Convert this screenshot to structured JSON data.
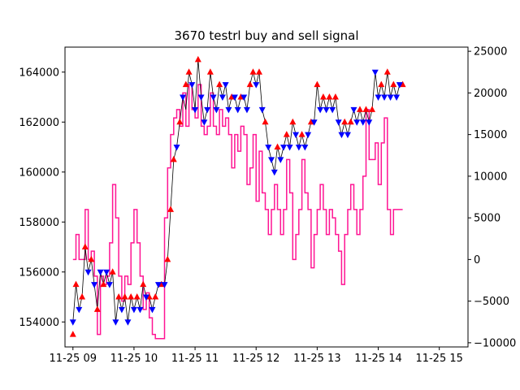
{
  "chart_data": {
    "type": "line",
    "title": "3670 testrl buy and sell signal",
    "xlabel": "",
    "ylabel": "",
    "x_ticks": [
      "11-25 09",
      "11-25 10",
      "11-25 11",
      "11-25 12",
      "11-25 13",
      "11-25 14",
      "11-25 15"
    ],
    "x_tick_hours": [
      9,
      10,
      11,
      12,
      13,
      14,
      15
    ],
    "xlim_hours": [
      8.87,
      15.47
    ],
    "y_left": {
      "lim": [
        153000,
        165000
      ],
      "ticks": [
        154000,
        156000,
        158000,
        160000,
        162000,
        164000
      ]
    },
    "y_right": {
      "lim": [
        -10500,
        25500
      ],
      "ticks": [
        -10000,
        -5000,
        0,
        5000,
        10000,
        15000,
        20000,
        25000
      ]
    },
    "grid": false,
    "colors": {
      "price": "#000000",
      "position": "#ff1493",
      "buy": "#ff0000",
      "sell": "#0000ff"
    },
    "series": [
      {
        "axis": "left",
        "points": [
          [
            9.0,
            154000
          ],
          [
            9.05,
            155500
          ],
          [
            9.1,
            154500
          ],
          [
            9.15,
            155000
          ],
          [
            9.2,
            157000
          ],
          [
            9.25,
            156000
          ],
          [
            9.3,
            156500
          ],
          [
            9.35,
            155500
          ],
          [
            9.4,
            154500
          ],
          [
            9.45,
            156000
          ],
          [
            9.5,
            155500
          ],
          [
            9.55,
            156000
          ],
          [
            9.6,
            155500
          ],
          [
            9.65,
            156000
          ],
          [
            9.7,
            154000
          ],
          [
            9.75,
            155000
          ],
          [
            9.8,
            154500
          ],
          [
            9.85,
            155000
          ],
          [
            9.9,
            154000
          ],
          [
            9.95,
            155000
          ],
          [
            10.0,
            154500
          ],
          [
            10.05,
            155000
          ],
          [
            10.1,
            154500
          ],
          [
            10.15,
            155500
          ],
          [
            10.2,
            155000
          ],
          [
            10.25,
            155000
          ],
          [
            10.3,
            154500
          ],
          [
            10.35,
            155000
          ],
          [
            10.4,
            155500
          ],
          [
            10.45,
            155500
          ],
          [
            10.5,
            155500
          ],
          [
            10.55,
            156500
          ],
          [
            10.6,
            158500
          ],
          [
            10.65,
            160500
          ],
          [
            10.7,
            161000
          ],
          [
            10.75,
            162000
          ],
          [
            10.8,
            163000
          ],
          [
            10.85,
            162500
          ],
          [
            10.9,
            164000
          ],
          [
            10.95,
            163500
          ],
          [
            11.0,
            162500
          ],
          [
            11.05,
            164500
          ],
          [
            11.1,
            163000
          ],
          [
            11.15,
            162000
          ],
          [
            11.2,
            162500
          ],
          [
            11.25,
            164000
          ],
          [
            11.3,
            163000
          ],
          [
            11.35,
            162500
          ],
          [
            11.4,
            163500
          ],
          [
            11.45,
            163000
          ],
          [
            11.5,
            163500
          ],
          [
            11.55,
            162500
          ],
          [
            11.6,
            163000
          ],
          [
            11.65,
            163000
          ],
          [
            11.7,
            162500
          ],
          [
            11.75,
            163000
          ],
          [
            11.8,
            163000
          ],
          [
            11.85,
            162500
          ],
          [
            11.9,
            163500
          ],
          [
            11.95,
            164000
          ],
          [
            12.0,
            163500
          ],
          [
            12.05,
            164000
          ],
          [
            12.1,
            162500
          ],
          [
            12.15,
            162000
          ],
          [
            12.2,
            161000
          ],
          [
            12.25,
            160500
          ],
          [
            12.3,
            160000
          ],
          [
            12.35,
            161000
          ],
          [
            12.4,
            160500
          ],
          [
            12.45,
            161000
          ],
          [
            12.5,
            161500
          ],
          [
            12.55,
            161000
          ],
          [
            12.6,
            162000
          ],
          [
            12.65,
            161500
          ],
          [
            12.7,
            161000
          ],
          [
            12.75,
            161500
          ],
          [
            12.8,
            161000
          ],
          [
            12.85,
            161500
          ],
          [
            12.9,
            162000
          ],
          [
            12.95,
            162000
          ],
          [
            13.0,
            163500
          ],
          [
            13.05,
            162500
          ],
          [
            13.1,
            163000
          ],
          [
            13.15,
            162500
          ],
          [
            13.2,
            163000
          ],
          [
            13.25,
            162500
          ],
          [
            13.3,
            163000
          ],
          [
            13.35,
            162000
          ],
          [
            13.4,
            161500
          ],
          [
            13.45,
            162000
          ],
          [
            13.5,
            161500
          ],
          [
            13.55,
            162000
          ],
          [
            13.6,
            162500
          ],
          [
            13.65,
            162000
          ],
          [
            13.7,
            162500
          ],
          [
            13.75,
            162000
          ],
          [
            13.8,
            162500
          ],
          [
            13.85,
            162000
          ],
          [
            13.9,
            162500
          ],
          [
            13.95,
            164000
          ],
          [
            14.0,
            163000
          ],
          [
            14.05,
            163500
          ],
          [
            14.1,
            163000
          ],
          [
            14.15,
            164000
          ],
          [
            14.2,
            163000
          ],
          [
            14.25,
            163500
          ],
          [
            14.3,
            163000
          ],
          [
            14.35,
            163500
          ],
          [
            14.4,
            163500
          ]
        ]
      },
      {
        "axis": "right",
        "points": [
          [
            9.0,
            0
          ],
          [
            9.05,
            3000
          ],
          [
            9.1,
            0
          ],
          [
            9.2,
            6000
          ],
          [
            9.25,
            0
          ],
          [
            9.3,
            1000
          ],
          [
            9.35,
            -2000
          ],
          [
            9.4,
            -9000
          ],
          [
            9.45,
            -2000
          ],
          [
            9.5,
            -3000
          ],
          [
            9.55,
            -2000
          ],
          [
            9.6,
            2000
          ],
          [
            9.65,
            9000
          ],
          [
            9.7,
            5000
          ],
          [
            9.75,
            -2000
          ],
          [
            9.8,
            -5000
          ],
          [
            9.85,
            -2000
          ],
          [
            9.9,
            -3000
          ],
          [
            9.95,
            2000
          ],
          [
            10.0,
            6000
          ],
          [
            10.05,
            2000
          ],
          [
            10.1,
            -2000
          ],
          [
            10.15,
            -6000
          ],
          [
            10.2,
            -4000
          ],
          [
            10.25,
            -7000
          ],
          [
            10.3,
            -9000
          ],
          [
            10.35,
            -9500
          ],
          [
            10.45,
            -9500
          ],
          [
            10.5,
            5000
          ],
          [
            10.55,
            11000
          ],
          [
            10.6,
            15000
          ],
          [
            10.65,
            17000
          ],
          [
            10.7,
            18000
          ],
          [
            10.75,
            16000
          ],
          [
            10.8,
            20000
          ],
          [
            10.85,
            16000
          ],
          [
            10.9,
            21000
          ],
          [
            10.95,
            18000
          ],
          [
            11.0,
            17000
          ],
          [
            11.05,
            21000
          ],
          [
            11.1,
            16000
          ],
          [
            11.15,
            15000
          ],
          [
            11.2,
            16000
          ],
          [
            11.25,
            20000
          ],
          [
            11.3,
            16000
          ],
          [
            11.35,
            15000
          ],
          [
            11.4,
            18000
          ],
          [
            11.45,
            16000
          ],
          [
            11.5,
            17000
          ],
          [
            11.55,
            15000
          ],
          [
            11.6,
            11000
          ],
          [
            11.65,
            15000
          ],
          [
            11.7,
            13000
          ],
          [
            11.75,
            16000
          ],
          [
            11.8,
            15000
          ],
          [
            11.85,
            9000
          ],
          [
            11.9,
            11000
          ],
          [
            11.95,
            15000
          ],
          [
            12.0,
            7000
          ],
          [
            12.05,
            13000
          ],
          [
            12.1,
            8000
          ],
          [
            12.15,
            6000
          ],
          [
            12.2,
            3000
          ],
          [
            12.25,
            6000
          ],
          [
            12.3,
            9000
          ],
          [
            12.35,
            6000
          ],
          [
            12.4,
            3000
          ],
          [
            12.45,
            6000
          ],
          [
            12.5,
            12000
          ],
          [
            12.55,
            8000
          ],
          [
            12.6,
            0
          ],
          [
            12.65,
            3000
          ],
          [
            12.7,
            6000
          ],
          [
            12.75,
            12000
          ],
          [
            12.8,
            8000
          ],
          [
            12.85,
            6000
          ],
          [
            12.9,
            -1000
          ],
          [
            12.95,
            3000
          ],
          [
            13.0,
            6000
          ],
          [
            13.05,
            9000
          ],
          [
            13.1,
            6000
          ],
          [
            13.15,
            3000
          ],
          [
            13.2,
            6000
          ],
          [
            13.25,
            5000
          ],
          [
            13.3,
            3000
          ],
          [
            13.35,
            1000
          ],
          [
            13.4,
            -3000
          ],
          [
            13.45,
            3000
          ],
          [
            13.5,
            6000
          ],
          [
            13.55,
            9000
          ],
          [
            13.6,
            6000
          ],
          [
            13.65,
            3000
          ],
          [
            13.7,
            6000
          ],
          [
            13.75,
            10000
          ],
          [
            13.8,
            18000
          ],
          [
            13.85,
            12000
          ],
          [
            13.9,
            12000
          ],
          [
            13.95,
            14000
          ],
          [
            14.0,
            9000
          ],
          [
            14.05,
            14000
          ],
          [
            14.1,
            17000
          ],
          [
            14.15,
            6000
          ],
          [
            14.2,
            3000
          ],
          [
            14.25,
            6000
          ],
          [
            14.4,
            6000
          ]
        ]
      }
    ],
    "buy_signals": [
      [
        9.0,
        153500
      ],
      [
        9.05,
        155500
      ],
      [
        9.15,
        155000
      ],
      [
        9.2,
        157000
      ],
      [
        9.3,
        156500
      ],
      [
        9.4,
        154500
      ],
      [
        9.5,
        155500
      ],
      [
        9.65,
        156000
      ],
      [
        9.75,
        155000
      ],
      [
        9.85,
        155000
      ],
      [
        9.95,
        155000
      ],
      [
        10.05,
        155000
      ],
      [
        10.15,
        155500
      ],
      [
        10.25,
        155000
      ],
      [
        10.35,
        155000
      ],
      [
        10.45,
        155500
      ],
      [
        10.55,
        156500
      ],
      [
        10.6,
        158500
      ],
      [
        10.65,
        160500
      ],
      [
        10.75,
        162000
      ],
      [
        10.85,
        163500
      ],
      [
        10.9,
        164000
      ],
      [
        11.05,
        164500
      ],
      [
        11.25,
        164000
      ],
      [
        11.4,
        163500
      ],
      [
        11.6,
        163000
      ],
      [
        11.75,
        163000
      ],
      [
        11.9,
        163500
      ],
      [
        11.95,
        164000
      ],
      [
        12.05,
        164000
      ],
      [
        12.15,
        162000
      ],
      [
        12.35,
        161000
      ],
      [
        12.5,
        161500
      ],
      [
        12.6,
        162000
      ],
      [
        12.75,
        161500
      ],
      [
        12.9,
        162000
      ],
      [
        13.0,
        163500
      ],
      [
        13.1,
        163000
      ],
      [
        13.2,
        163000
      ],
      [
        13.3,
        163000
      ],
      [
        13.45,
        162000
      ],
      [
        13.55,
        162000
      ],
      [
        13.7,
        162500
      ],
      [
        13.8,
        162500
      ],
      [
        13.9,
        162500
      ],
      [
        14.05,
        163500
      ],
      [
        14.15,
        164000
      ],
      [
        14.25,
        163500
      ],
      [
        14.4,
        163500
      ]
    ],
    "sell_signals": [
      [
        9.0,
        154000
      ],
      [
        9.1,
        154500
      ],
      [
        9.25,
        156000
      ],
      [
        9.35,
        155500
      ],
      [
        9.45,
        156000
      ],
      [
        9.55,
        156000
      ],
      [
        9.6,
        155500
      ],
      [
        9.7,
        154000
      ],
      [
        9.8,
        154500
      ],
      [
        9.9,
        154000
      ],
      [
        10.0,
        154500
      ],
      [
        10.1,
        154500
      ],
      [
        10.2,
        155000
      ],
      [
        10.3,
        154500
      ],
      [
        10.4,
        155500
      ],
      [
        10.5,
        155500
      ],
      [
        10.7,
        161000
      ],
      [
        10.8,
        163000
      ],
      [
        10.95,
        163500
      ],
      [
        11.0,
        162500
      ],
      [
        11.1,
        163000
      ],
      [
        11.15,
        162000
      ],
      [
        11.2,
        162500
      ],
      [
        11.3,
        163000
      ],
      [
        11.35,
        162500
      ],
      [
        11.45,
        163000
      ],
      [
        11.5,
        163500
      ],
      [
        11.55,
        162500
      ],
      [
        11.65,
        163000
      ],
      [
        11.7,
        162500
      ],
      [
        11.8,
        163000
      ],
      [
        11.85,
        162500
      ],
      [
        12.0,
        163500
      ],
      [
        12.1,
        162500
      ],
      [
        12.2,
        161000
      ],
      [
        12.25,
        160500
      ],
      [
        12.3,
        160000
      ],
      [
        12.4,
        160500
      ],
      [
        12.45,
        161000
      ],
      [
        12.55,
        161000
      ],
      [
        12.65,
        161500
      ],
      [
        12.7,
        161000
      ],
      [
        12.8,
        161000
      ],
      [
        12.85,
        161500
      ],
      [
        12.95,
        162000
      ],
      [
        13.05,
        162500
      ],
      [
        13.15,
        162500
      ],
      [
        13.25,
        162500
      ],
      [
        13.35,
        162000
      ],
      [
        13.4,
        161500
      ],
      [
        13.5,
        161500
      ],
      [
        13.6,
        162500
      ],
      [
        13.65,
        162000
      ],
      [
        13.75,
        162000
      ],
      [
        13.85,
        162000
      ],
      [
        13.95,
        164000
      ],
      [
        14.0,
        163000
      ],
      [
        14.1,
        163000
      ],
      [
        14.2,
        163000
      ],
      [
        14.3,
        163000
      ],
      [
        14.35,
        163500
      ]
    ]
  }
}
